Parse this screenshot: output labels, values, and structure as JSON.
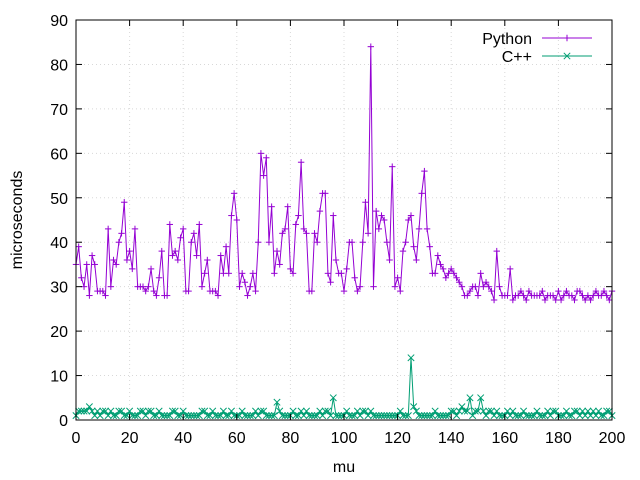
{
  "chart_data": {
    "type": "line",
    "title": "",
    "xlabel": "mu",
    "ylabel": "microseconds",
    "xlim": [
      0,
      200
    ],
    "ylim": [
      0,
      90
    ],
    "xticks": [
      0,
      20,
      40,
      60,
      80,
      100,
      120,
      140,
      160,
      180,
      200
    ],
    "yticks": [
      0,
      10,
      20,
      30,
      40,
      50,
      60,
      70,
      80,
      90
    ],
    "grid": true,
    "legend_position": "top-right",
    "series": [
      {
        "name": "Python",
        "color": "#9400d3",
        "marker": "plus",
        "x": [
          0,
          1,
          2,
          3,
          4,
          5,
          6,
          7,
          8,
          9,
          10,
          11,
          12,
          13,
          14,
          15,
          16,
          17,
          18,
          19,
          20,
          21,
          22,
          23,
          24,
          25,
          26,
          27,
          28,
          29,
          30,
          31,
          32,
          33,
          34,
          35,
          36,
          37,
          38,
          39,
          40,
          41,
          42,
          43,
          44,
          45,
          46,
          47,
          48,
          49,
          50,
          51,
          52,
          53,
          54,
          55,
          56,
          57,
          58,
          59,
          60,
          61,
          62,
          63,
          64,
          65,
          66,
          67,
          68,
          69,
          70,
          71,
          72,
          73,
          74,
          75,
          76,
          77,
          78,
          79,
          80,
          81,
          82,
          83,
          84,
          85,
          86,
          87,
          88,
          89,
          90,
          91,
          92,
          93,
          94,
          95,
          96,
          97,
          98,
          99,
          100,
          101,
          102,
          103,
          104,
          105,
          106,
          107,
          108,
          109,
          110,
          111,
          112,
          113,
          114,
          115,
          116,
          117,
          118,
          119,
          120,
          121,
          122,
          123,
          124,
          125,
          126,
          127,
          128,
          129,
          130,
          131,
          132,
          133,
          134,
          135,
          136,
          137,
          138,
          139,
          140,
          141,
          142,
          143,
          144,
          145,
          146,
          147,
          148,
          149,
          150,
          151,
          152,
          153,
          154,
          155,
          156,
          157,
          158,
          159,
          160,
          161,
          162,
          163,
          164,
          165,
          166,
          167,
          168,
          169,
          170,
          171,
          172,
          173,
          174,
          175,
          176,
          177,
          178,
          179,
          180,
          181,
          182,
          183,
          184,
          185,
          186,
          187,
          188,
          189,
          190,
          191,
          192,
          193,
          194,
          195,
          196,
          197,
          198,
          199,
          200
        ],
        "values": [
          35,
          39,
          32,
          30,
          35,
          28,
          37,
          35,
          29,
          29,
          29,
          28,
          43,
          30,
          36,
          35,
          40,
          42,
          49,
          36,
          38,
          34,
          43,
          30,
          30,
          30,
          29,
          30,
          34,
          29,
          28,
          32,
          38,
          28,
          28,
          44,
          37,
          38,
          36,
          41,
          43,
          29,
          29,
          40,
          42,
          37,
          44,
          30,
          33,
          36,
          29,
          29,
          29,
          28,
          37,
          33,
          39,
          33,
          46,
          51,
          45,
          30,
          33,
          31,
          28,
          30,
          33,
          29,
          40,
          60,
          55,
          59,
          40,
          48,
          33,
          38,
          35,
          42,
          43,
          48,
          34,
          33,
          44,
          46,
          58,
          43,
          42,
          29,
          29,
          42,
          40,
          47,
          51,
          51,
          33,
          31,
          46,
          36,
          33,
          33,
          29,
          34,
          40,
          40,
          32,
          29,
          30,
          40,
          49,
          42,
          84,
          30,
          47,
          43,
          46,
          45,
          40,
          36,
          57,
          30,
          32,
          29,
          38,
          40,
          45,
          46,
          39,
          36,
          43,
          51,
          56,
          43,
          39,
          33,
          33,
          37,
          35,
          34,
          32,
          33,
          34,
          33,
          32,
          31,
          30,
          28,
          28,
          29,
          30,
          30,
          28,
          33,
          30,
          31,
          30,
          29,
          27,
          38,
          30,
          28,
          28,
          28,
          34,
          27,
          28,
          28,
          29,
          28,
          27,
          29,
          28,
          28,
          28,
          28,
          29,
          27,
          28,
          28,
          28,
          27,
          29,
          27,
          28,
          29,
          28,
          28,
          27,
          29,
          29,
          28,
          27,
          28,
          27,
          28,
          29,
          28,
          28,
          29,
          28,
          27,
          29
        ]
      },
      {
        "name": "C++",
        "color": "#009e73",
        "marker": "cross",
        "x": [
          0,
          1,
          2,
          3,
          4,
          5,
          6,
          7,
          8,
          9,
          10,
          11,
          12,
          13,
          14,
          15,
          16,
          17,
          18,
          19,
          20,
          21,
          22,
          23,
          24,
          25,
          26,
          27,
          28,
          29,
          30,
          31,
          32,
          33,
          34,
          35,
          36,
          37,
          38,
          39,
          40,
          41,
          42,
          43,
          44,
          45,
          46,
          47,
          48,
          49,
          50,
          51,
          52,
          53,
          54,
          55,
          56,
          57,
          58,
          59,
          60,
          61,
          62,
          63,
          64,
          65,
          66,
          67,
          68,
          69,
          70,
          71,
          72,
          73,
          74,
          75,
          76,
          77,
          78,
          79,
          80,
          81,
          82,
          83,
          84,
          85,
          86,
          87,
          88,
          89,
          90,
          91,
          92,
          93,
          94,
          95,
          96,
          97,
          98,
          99,
          100,
          101,
          102,
          103,
          104,
          105,
          106,
          107,
          108,
          109,
          110,
          111,
          112,
          113,
          114,
          115,
          116,
          117,
          118,
          119,
          120,
          121,
          122,
          123,
          124,
          125,
          126,
          127,
          128,
          129,
          130,
          131,
          132,
          133,
          134,
          135,
          136,
          137,
          138,
          139,
          140,
          141,
          142,
          143,
          144,
          145,
          146,
          147,
          148,
          149,
          150,
          151,
          152,
          153,
          154,
          155,
          156,
          157,
          158,
          159,
          160,
          161,
          162,
          163,
          164,
          165,
          166,
          167,
          168,
          169,
          170,
          171,
          172,
          173,
          174,
          175,
          176,
          177,
          178,
          179,
          180,
          181,
          182,
          183,
          184,
          185,
          186,
          187,
          188,
          189,
          190,
          191,
          192,
          193,
          194,
          195,
          196,
          197,
          198,
          199,
          200
        ],
        "values": [
          1,
          2,
          2,
          2,
          2,
          3,
          2,
          1,
          2,
          1,
          2,
          2,
          1,
          2,
          1,
          1,
          2,
          2,
          1,
          1,
          2,
          1,
          1,
          1,
          2,
          2,
          1,
          2,
          2,
          1,
          1,
          2,
          1,
          1,
          1,
          1,
          2,
          2,
          1,
          1,
          2,
          1,
          1,
          1,
          1,
          1,
          1,
          2,
          2,
          1,
          1,
          2,
          1,
          1,
          1,
          2,
          1,
          1,
          2,
          1,
          1,
          1,
          2,
          1,
          1,
          1,
          1,
          2,
          1,
          2,
          2,
          1,
          1,
          1,
          1,
          4,
          2,
          1,
          1,
          1,
          1,
          2,
          1,
          1,
          2,
          1,
          2,
          1,
          1,
          1,
          1,
          2,
          1,
          2,
          2,
          1,
          5,
          1,
          1,
          1,
          1,
          2,
          1,
          1,
          1,
          2,
          1,
          2,
          2,
          1,
          2,
          1,
          1,
          1,
          1,
          1,
          1,
          1,
          1,
          1,
          1,
          2,
          1,
          1,
          1,
          14,
          3,
          2,
          1,
          1,
          1,
          1,
          1,
          1,
          2,
          1,
          1,
          1,
          1,
          1,
          2,
          2,
          1,
          2,
          3,
          2,
          2,
          5,
          1,
          2,
          2,
          5,
          2,
          1,
          2,
          2,
          1,
          2,
          1,
          1,
          1,
          2,
          1,
          2,
          1,
          1,
          1,
          2,
          1,
          1,
          1,
          1,
          2,
          1,
          1,
          1,
          2,
          1,
          2,
          2,
          1,
          1,
          1,
          2,
          1,
          1,
          2,
          2,
          1,
          2,
          1,
          2,
          1,
          2,
          1,
          2,
          1,
          1,
          2,
          2,
          1
        ]
      }
    ]
  }
}
